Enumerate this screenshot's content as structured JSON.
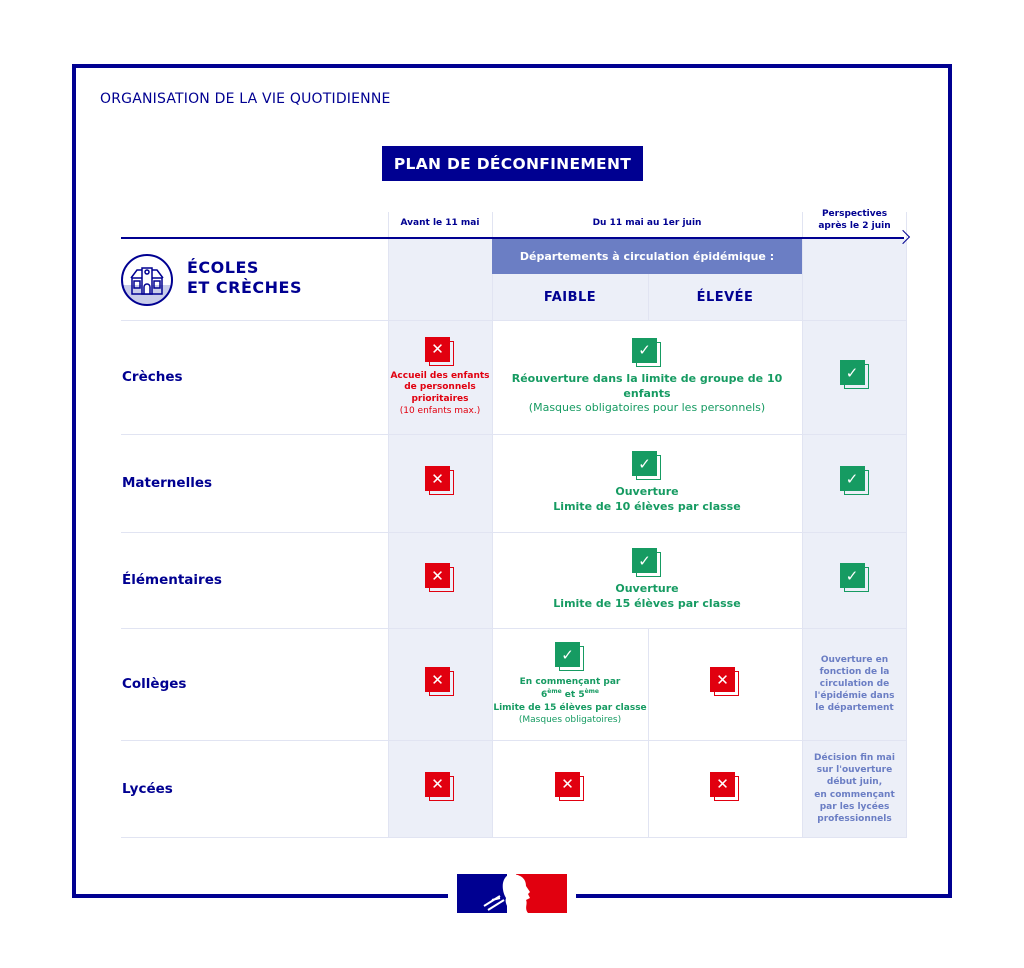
{
  "section_title": "ORGANISATION DE LA VIE QUOTIDIENNE",
  "plan_title": "PLAN DE DÉCONFINEMENT",
  "timeline": {
    "col1": "Avant le 11 mai",
    "col2": "Du 11 mai au 1er juin",
    "col3_line1": "Perspectives",
    "col3_line2": "après le 2 juin"
  },
  "category": {
    "line1": "ÉCOLES",
    "line2": "ET CRÈCHES",
    "icon": "school-building-icon"
  },
  "departments_header": "Départements à circulation épidémique :",
  "levels": {
    "low": "FAIBLE",
    "high": "ÉLEVÉE"
  },
  "colors": {
    "navy": "#000091",
    "green": "#169b62",
    "red": "#e1000f",
    "periwinkle": "#6b7ec4"
  },
  "rows": [
    {
      "label": "Crèches",
      "before": {
        "status": "closed",
        "lines": [
          "Accueil des enfants",
          "de personnels",
          "prioritaires",
          "(10 enfants max.)"
        ]
      },
      "during": {
        "status": "open",
        "line1": "Réouverture dans la limite de groupe de 10 enfants",
        "line2": "(Masques obligatoires pour les personnels)"
      },
      "after": {
        "status": "open"
      }
    },
    {
      "label": "Maternelles",
      "before": {
        "status": "closed"
      },
      "during": {
        "status": "open",
        "line1": "Ouverture",
        "line2": "Limite de 10 élèves par classe"
      },
      "after": {
        "status": "open"
      }
    },
    {
      "label": "Élémentaires",
      "before": {
        "status": "closed"
      },
      "during": {
        "status": "open",
        "line1": "Ouverture",
        "line2": "Limite de 15 élèves par classe"
      },
      "after": {
        "status": "open"
      }
    },
    {
      "label": "Collèges",
      "before": {
        "status": "closed"
      },
      "low": {
        "status": "open",
        "line1": "En commençant par",
        "sup1": "ème",
        "and": "et 5",
        "sup2": "ème",
        "six": "6",
        "line3": "Limite de 15 élèves par classe",
        "line4": "(Masques obligatoires)"
      },
      "high": {
        "status": "closed"
      },
      "after": {
        "lines": [
          "Ouverture en",
          "fonction de la",
          "circulation de",
          "l'épidémie dans",
          "le département"
        ]
      }
    },
    {
      "label": "Lycées",
      "before": {
        "status": "closed"
      },
      "low": {
        "status": "closed"
      },
      "high": {
        "status": "closed"
      },
      "after": {
        "lines": [
          "Décision fin mai",
          "sur l'ouverture",
          "début juin,",
          "en commençant",
          "par les lycées",
          "professionnels"
        ]
      }
    }
  ],
  "logo": "Marianne République française logo"
}
